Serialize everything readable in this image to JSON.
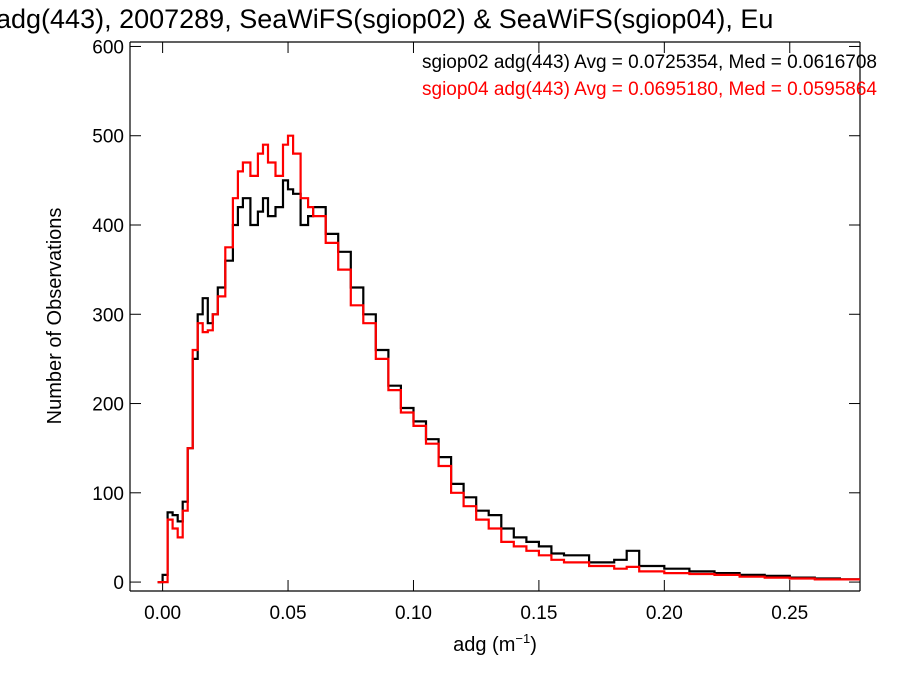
{
  "chart_data": {
    "type": "line",
    "style": "histogram-step",
    "title": "adg(443), 2007289, SeaWiFS(sgiop02) & SeaWiFS(sgiop04), Eu",
    "xlabel": "adg (m",
    "xlabel_sup": "−1",
    "xlabel_close": ")",
    "ylabel": "Number of Observations",
    "xlim": [
      -0.013,
      0.278
    ],
    "ylim": [
      -10,
      605
    ],
    "xticks": [
      0.0,
      0.05,
      0.1,
      0.15,
      0.2,
      0.25
    ],
    "xtick_labels": [
      "0.00",
      "0.05",
      "0.10",
      "0.15",
      "0.20",
      "0.25"
    ],
    "yticks": [
      0,
      100,
      200,
      300,
      400,
      500,
      600
    ],
    "ytick_labels": [
      "0",
      "100",
      "200",
      "300",
      "400",
      "500",
      "600"
    ],
    "grid": false,
    "legend_position": "top-right",
    "legend": [
      {
        "text": "sgiop02 adg(443) Avg = 0.0725354, Med = 0.0616708",
        "color": "#000000"
      },
      {
        "text": "sgiop04 adg(443) Avg = 0.0695180, Med = 0.0595864",
        "color": "#ff0000"
      }
    ],
    "series": [
      {
        "color": "#000000",
        "x": [
          -0.002,
          0.0,
          0.002,
          0.004,
          0.006,
          0.008,
          0.01,
          0.012,
          0.014,
          0.016,
          0.018,
          0.02,
          0.022,
          0.025,
          0.028,
          0.03,
          0.032,
          0.035,
          0.038,
          0.04,
          0.042,
          0.045,
          0.048,
          0.05,
          0.052,
          0.055,
          0.058,
          0.06,
          0.065,
          0.07,
          0.075,
          0.08,
          0.085,
          0.09,
          0.095,
          0.1,
          0.105,
          0.11,
          0.115,
          0.12,
          0.125,
          0.13,
          0.135,
          0.14,
          0.145,
          0.15,
          0.155,
          0.16,
          0.17,
          0.18,
          0.185,
          0.19,
          0.2,
          0.21,
          0.22,
          0.23,
          0.24,
          0.25,
          0.26,
          0.27,
          0.275
        ],
        "y": [
          0,
          8,
          78,
          75,
          68,
          90,
          150,
          250,
          300,
          318,
          290,
          300,
          330,
          360,
          400,
          420,
          430,
          400,
          415,
          430,
          410,
          420,
          450,
          440,
          435,
          400,
          410,
          420,
          390,
          370,
          330,
          300,
          260,
          220,
          195,
          180,
          160,
          140,
          110,
          95,
          80,
          75,
          60,
          50,
          45,
          40,
          32,
          30,
          22,
          25,
          35,
          18,
          15,
          12,
          10,
          8,
          7,
          5,
          4,
          3,
          3
        ]
      },
      {
        "color": "#ff0000",
        "x": [
          -0.002,
          0.0,
          0.002,
          0.004,
          0.006,
          0.008,
          0.01,
          0.012,
          0.014,
          0.016,
          0.018,
          0.02,
          0.022,
          0.025,
          0.028,
          0.03,
          0.032,
          0.035,
          0.038,
          0.04,
          0.042,
          0.045,
          0.048,
          0.05,
          0.052,
          0.055,
          0.058,
          0.06,
          0.065,
          0.07,
          0.075,
          0.08,
          0.085,
          0.09,
          0.095,
          0.1,
          0.105,
          0.11,
          0.115,
          0.12,
          0.125,
          0.13,
          0.135,
          0.14,
          0.145,
          0.15,
          0.155,
          0.16,
          0.17,
          0.18,
          0.185,
          0.19,
          0.2,
          0.21,
          0.22,
          0.23,
          0.24,
          0.25,
          0.26,
          0.27,
          0.275
        ],
        "y": [
          0,
          0,
          70,
          60,
          50,
          80,
          150,
          260,
          290,
          280,
          282,
          300,
          320,
          375,
          430,
          460,
          470,
          455,
          480,
          490,
          470,
          455,
          490,
          500,
          480,
          430,
          420,
          410,
          380,
          350,
          310,
          290,
          250,
          215,
          190,
          175,
          155,
          130,
          100,
          85,
          70,
          60,
          45,
          40,
          35,
          30,
          25,
          22,
          18,
          15,
          17,
          12,
          10,
          9,
          8,
          6,
          5,
          4,
          3,
          3,
          3
        ]
      }
    ]
  }
}
